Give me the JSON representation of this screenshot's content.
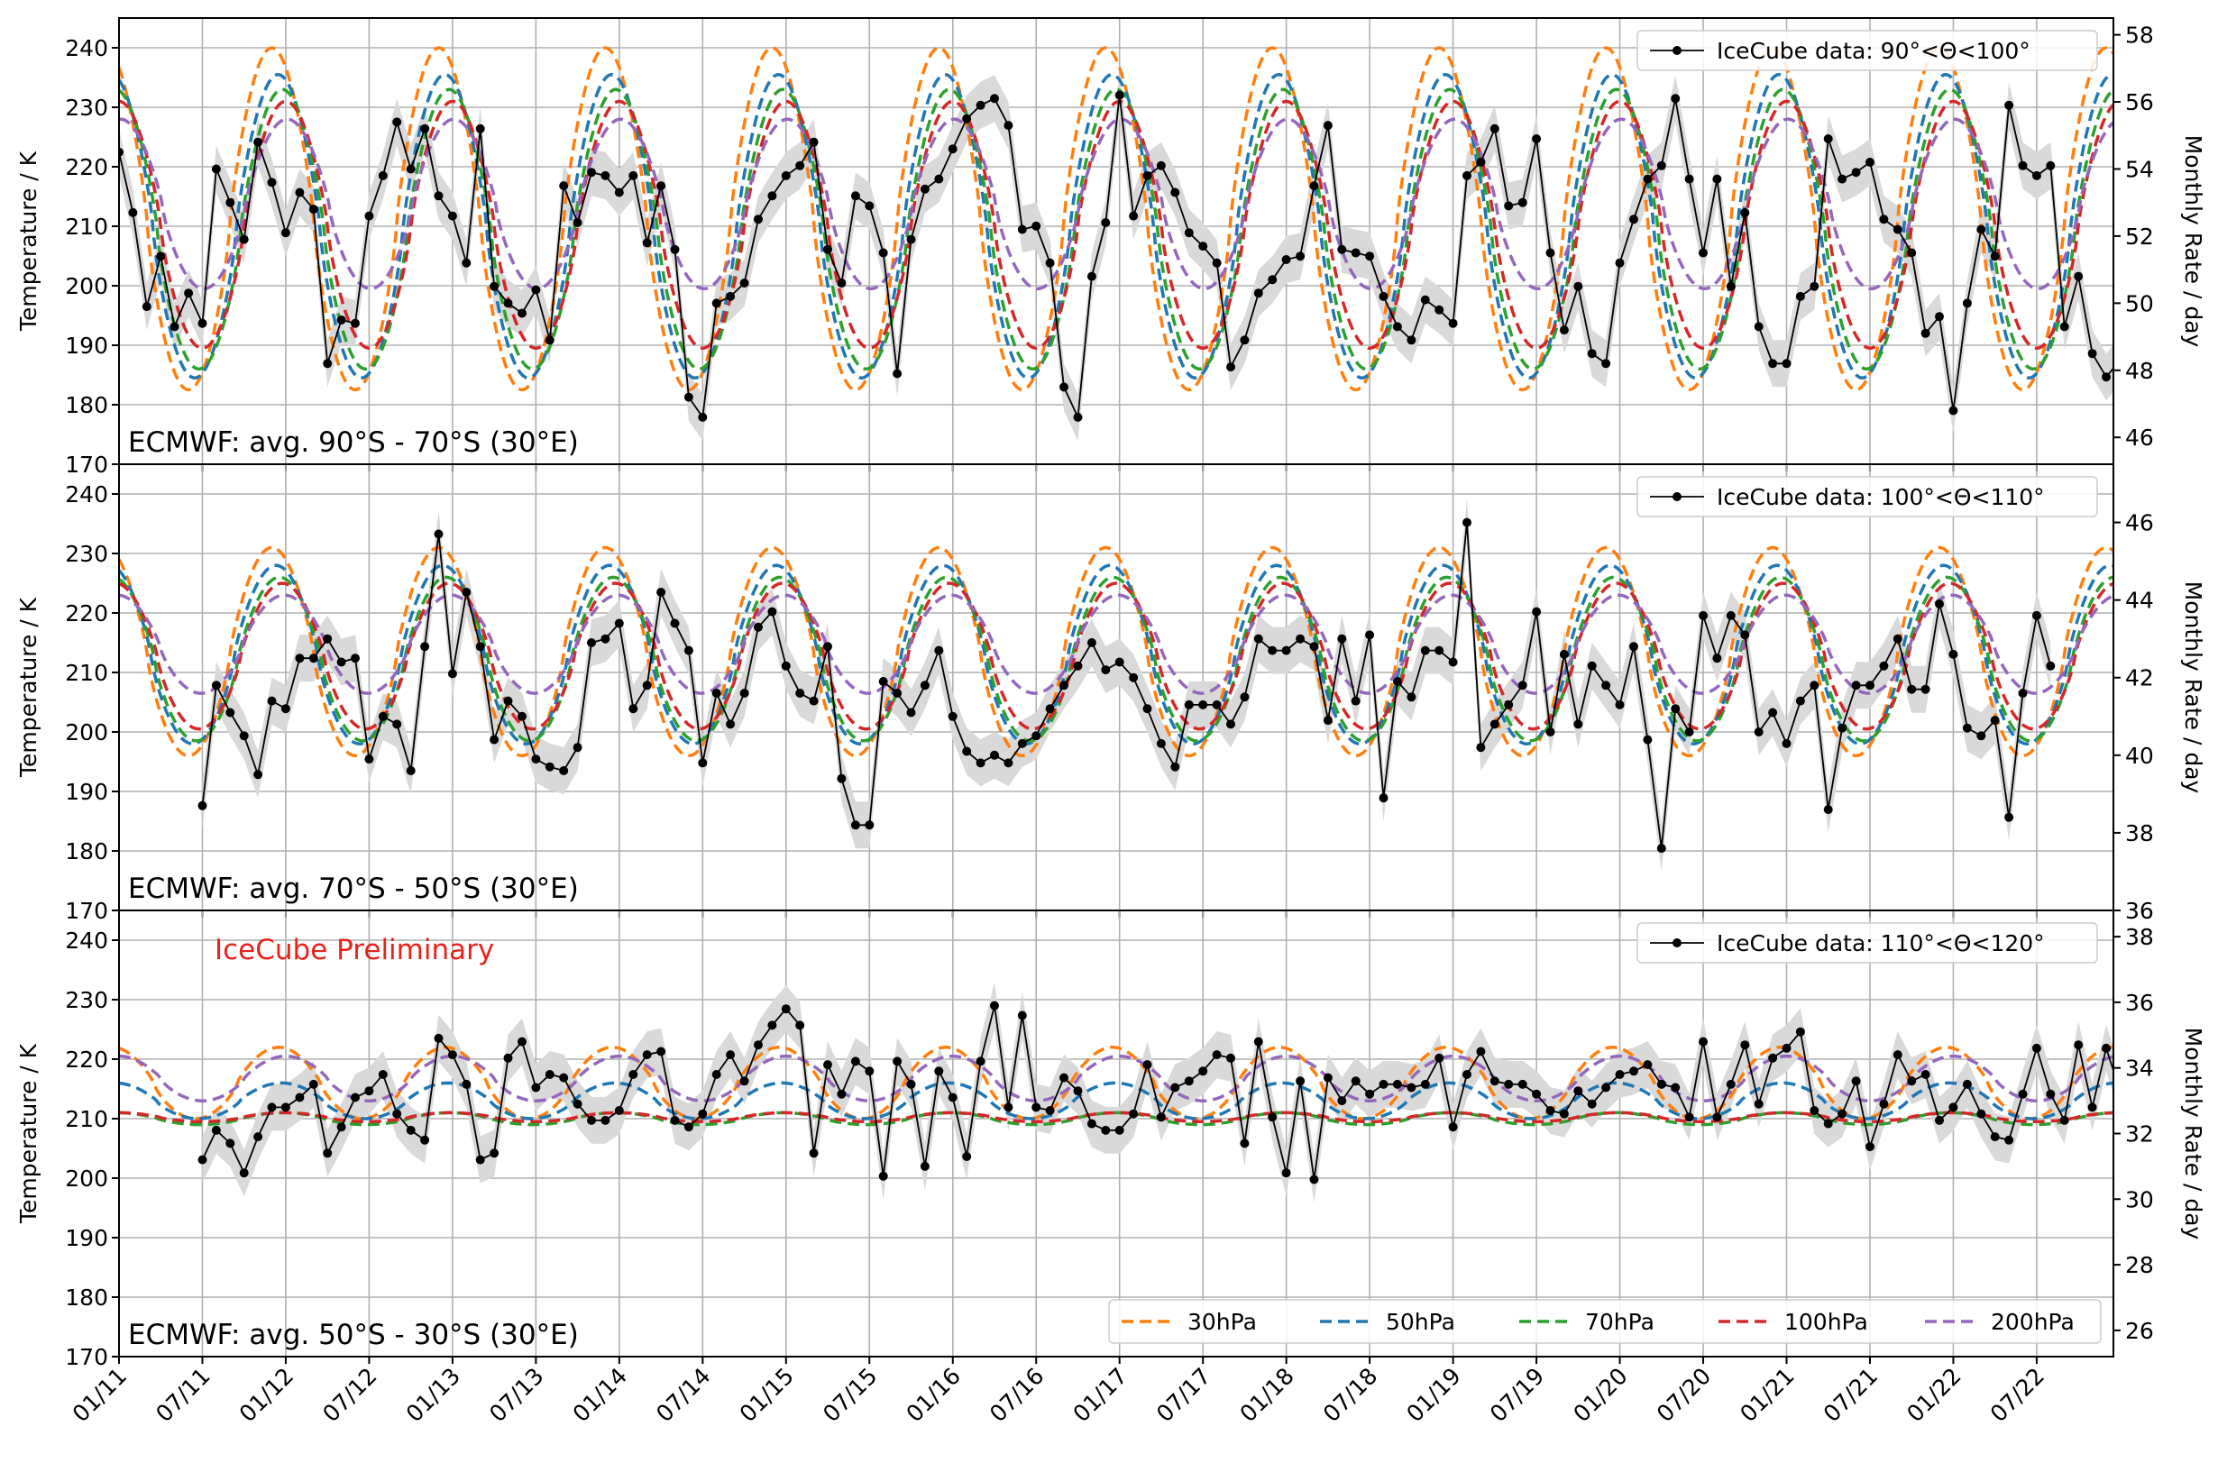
{
  "chart_data": [
    {
      "type": "line",
      "annotation": "ECMWF: avg. 90°S - 70°S (30°E)",
      "watermark": "",
      "ylabel": "Temperature / K",
      "y2label": "Monthly Rate / day",
      "ylim": [
        170,
        245
      ],
      "y2lim": [
        45.2,
        58.5
      ],
      "yticks": [
        170,
        180,
        190,
        200,
        210,
        220,
        230,
        240
      ],
      "y2ticks": [
        46,
        48,
        50,
        52,
        54,
        56,
        58
      ],
      "grid": true,
      "icecube": {
        "label": "IceCube data: 90°<Θ<100°",
        "start": 2011.0,
        "values": [
          54.5,
          52.7,
          49.9,
          51.4,
          49.3,
          50.3,
          49.4,
          54,
          53,
          51.9,
          54.8,
          53.6,
          52.1,
          53.3,
          52.8,
          48.2,
          49.5,
          49.4,
          52.6,
          53.8,
          55.4,
          54,
          55.2,
          53.2,
          52.6,
          51.2,
          55.2,
          50.5,
          50,
          49.7,
          50.4,
          48.9,
          53.5,
          52.4,
          53.9,
          53.8,
          53.3,
          53.8,
          51.8,
          53.5,
          51.6,
          47.2,
          46.6,
          50,
          50.2,
          50.6,
          52.5,
          53.2,
          53.8,
          54.1,
          54.8,
          51.6,
          50.6,
          53.2,
          52.9,
          51.5,
          47.9,
          51.9,
          53.4,
          53.7,
          54.6,
          55.5,
          55.9,
          56.1,
          55.3,
          52.2,
          52.3,
          51.2,
          47.5,
          46.6,
          50.8,
          52.4,
          56.2,
          52.6,
          53.8,
          54.1,
          53.3,
          52.1,
          51.7,
          51.2,
          48.1,
          48.9,
          50.3,
          50.7,
          51.3,
          51.4,
          53.5,
          55.3,
          51.6,
          51.5,
          51.4,
          50.2,
          49.3,
          48.9,
          50.1,
          49.8,
          49.4,
          53.8,
          54.2,
          55.2,
          52.9,
          53,
          54.9,
          51.5,
          49.2,
          50.5,
          48.5,
          48.2,
          51.2,
          52.5,
          53.7,
          54.1,
          56.1,
          53.7,
          51.5,
          53.7,
          50.5,
          52.7,
          49.3,
          48.2,
          48.2,
          50.2,
          50.5,
          54.9,
          53.7,
          53.9,
          54.2,
          52.5,
          52.2,
          51.5,
          49.1,
          49.6,
          46.8,
          50,
          52.2,
          51.4,
          55.9,
          54.1,
          53.8,
          54.1,
          49.3,
          50.8,
          48.5,
          47.8,
          48.3,
          50.9,
          50.5,
          48.5
        ]
      },
      "series": [
        {
          "name": "30hPa",
          "color": "#ff7f0e",
          "min": 182.5,
          "max": 240,
          "peak": 11.0
        },
        {
          "name": "50hPa",
          "color": "#1f77b4",
          "min": 184.5,
          "max": 235.5,
          "peak": 11.45
        },
        {
          "name": "70hPa",
          "color": "#2ca02c",
          "min": 186,
          "max": 233,
          "peak": 11.75
        },
        {
          "name": "100hPa",
          "color": "#d62728",
          "min": 189.5,
          "max": 231,
          "peak": 12.0
        },
        {
          "name": "200hPa",
          "color": "#9467bd",
          "min": 199.5,
          "max": 228,
          "peak": 12.1
        }
      ]
    },
    {
      "type": "line",
      "annotation": "ECMWF: avg. 70°S - 50°S (30°E)",
      "watermark": "",
      "ylabel": "Temperature / K",
      "y2label": "Monthly Rate / day",
      "ylim": [
        170,
        245
      ],
      "y2lim": [
        36,
        47.5
      ],
      "yticks": [
        170,
        180,
        190,
        200,
        210,
        220,
        230,
        240
      ],
      "y2ticks": [
        36,
        38,
        40,
        42,
        44,
        46
      ],
      "grid": true,
      "icecube": {
        "label": "IceCube data: 100°<Θ<110°",
        "start": 2011.5,
        "values": [
          38.7,
          41.8,
          41.1,
          40.5,
          39.5,
          41.4,
          41.2,
          42.5,
          42.5,
          43,
          42.4,
          42.5,
          39.9,
          41,
          40.8,
          39.6,
          42.8,
          45.7,
          42.1,
          44.2,
          42.8,
          40.4,
          41.4,
          41,
          39.9,
          39.7,
          39.6,
          40.2,
          42.9,
          43,
          43.4,
          41.2,
          41.8,
          44.2,
          43.4,
          42.7,
          39.8,
          41.6,
          40.8,
          41.6,
          43.3,
          43.7,
          42.3,
          41.6,
          41.4,
          42.8,
          39.4,
          38.2,
          38.2,
          41.9,
          41.6,
          41.1,
          41.8,
          42.7,
          41,
          40.1,
          39.8,
          40,
          39.8,
          40.3,
          40.5,
          41.2,
          41.8,
          42.3,
          42.9,
          42.2,
          42.4,
          42,
          41.2,
          40.3,
          39.7,
          41.3,
          41.3,
          41.3,
          40.8,
          41.5,
          43,
          42.7,
          42.7,
          43,
          42.8,
          40.9,
          43,
          41.4,
          43.1,
          38.9,
          41.9,
          41.5,
          42.7,
          42.7,
          42.4,
          46,
          40.2,
          40.8,
          41.3,
          41.8,
          43.7,
          40.6,
          42.6,
          40.8,
          42.3,
          41.8,
          41.3,
          42.8,
          40.4,
          37.6,
          41.2,
          40.6,
          43.6,
          42.5,
          43.6,
          43.1,
          40.6,
          41.1,
          40.3,
          41.4,
          41.8,
          38.6,
          40.7,
          41.8,
          41.8,
          42.3,
          43,
          41.7,
          41.7,
          43.9,
          42.6,
          40.7,
          40.5,
          40.9,
          38.4,
          41.6,
          43.6,
          42.3
        ]
      },
      "series": [
        {
          "name": "30hPa",
          "color": "#ff7f0e",
          "min": 196,
          "max": 231,
          "peak": 11.0
        },
        {
          "name": "50hPa",
          "color": "#1f77b4",
          "min": 198,
          "max": 228,
          "peak": 11.3
        },
        {
          "name": "70hPa",
          "color": "#2ca02c",
          "min": 198.5,
          "max": 226,
          "peak": 11.55
        },
        {
          "name": "100hPa",
          "color": "#d62728",
          "min": 200.5,
          "max": 225,
          "peak": 11.75
        },
        {
          "name": "200hPa",
          "color": "#9467bd",
          "min": 206.5,
          "max": 223,
          "peak": 11.9
        }
      ]
    },
    {
      "type": "line",
      "annotation": "ECMWF: avg. 50°S - 30°S (30°E)",
      "watermark": "IceCube Preliminary",
      "ylabel": "Temperature / K",
      "y2label": "Monthly Rate / day",
      "ylim": [
        170,
        245
      ],
      "y2lim": [
        25.2,
        38.8
      ],
      "yticks": [
        170,
        180,
        190,
        200,
        210,
        220,
        230,
        240
      ],
      "y2ticks": [
        26,
        28,
        30,
        32,
        34,
        36,
        38
      ],
      "grid": true,
      "icecube": {
        "label": "IceCube data: 110°<Θ<120°",
        "start": 2011.5,
        "values": [
          31.2,
          32.1,
          31.7,
          30.8,
          31.9,
          32.8,
          32.8,
          33.1,
          33.5,
          31.4,
          32.2,
          33.1,
          33.3,
          33.8,
          32.6,
          32.1,
          31.8,
          34.9,
          34.4,
          33.5,
          31.2,
          31.4,
          34.3,
          34.8,
          33.4,
          33.8,
          33.7,
          32.9,
          32.4,
          32.4,
          32.7,
          33.8,
          34.4,
          34.5,
          32.4,
          32.2,
          32.6,
          33.8,
          34.4,
          33.6,
          34.7,
          35.3,
          35.8,
          35.3,
          31.4,
          34.1,
          33.2,
          34.2,
          33.9,
          30.7,
          34.2,
          33.5,
          31,
          33.9,
          33.1,
          31.3,
          34.2,
          35.9,
          32.8,
          35.6,
          32.8,
          32.7,
          33.7,
          33.3,
          32.3,
          32.1,
          32.1,
          32.6,
          34.1,
          32.5,
          33.4,
          33.6,
          33.9,
          34.4,
          34.3,
          31.7,
          34.8,
          32.5,
          30.8,
          33.6,
          30.6,
          33.7,
          33,
          33.6,
          33.2,
          33.5,
          33.5,
          33.4,
          33.5,
          34.3,
          32.2,
          33.8,
          34.5,
          33.6,
          33.5,
          33.5,
          33.2,
          32.7,
          32.6,
          33.3,
          32.9,
          33.4,
          33.8,
          33.9,
          34.1,
          33.5,
          33.4,
          32.5,
          34.8,
          32.5,
          33.5,
          34.7,
          32.9,
          34.3,
          34.6,
          35.1,
          32.7,
          32.3,
          32.6,
          33.6,
          31.6,
          32.9,
          34.4,
          33.6,
          33.8,
          32.4,
          32.8,
          33.5,
          32.6,
          31.9,
          31.8,
          33.2,
          34.6,
          33.2,
          32.4,
          34.7,
          32.8,
          34.6,
          33.3,
          31.6,
          32,
          31.6,
          31.3,
          33.2,
          32.3,
          33.8,
          33.6,
          32.4,
          33.2,
          33.2,
          33.3
        ]
      },
      "series": [
        {
          "name": "30hPa",
          "color": "#ff7f0e",
          "min": 210,
          "max": 222,
          "peak": 11.5
        },
        {
          "name": "50hPa",
          "color": "#1f77b4",
          "min": 210,
          "max": 216,
          "peak": 11.7
        },
        {
          "name": "70hPa",
          "color": "#2ca02c",
          "min": 209,
          "max": 211,
          "peak": 11.8
        },
        {
          "name": "100hPa",
          "color": "#d62728",
          "min": 209.5,
          "max": 211,
          "peak": 11.9
        },
        {
          "name": "200hPa",
          "color": "#9467bd",
          "min": 213,
          "max": 220.5,
          "peak": 12.0
        }
      ]
    }
  ],
  "x_axis": {
    "xlim": [
      2011.0,
      2022.96
    ],
    "tick_labels": [
      "01/11",
      "07/11",
      "01/12",
      "07/12",
      "01/13",
      "07/13",
      "01/14",
      "07/14",
      "01/15",
      "07/15",
      "01/16",
      "07/16",
      "01/17",
      "07/17",
      "01/18",
      "07/18",
      "01/19",
      "07/19",
      "01/20",
      "07/20",
      "01/21",
      "07/21",
      "01/22",
      "07/22"
    ]
  },
  "legend": {
    "entries": [
      "30hPa",
      "50hPa",
      "70hPa",
      "100hPa",
      "200hPa"
    ],
    "placement": "lower-right of bottom panel"
  }
}
